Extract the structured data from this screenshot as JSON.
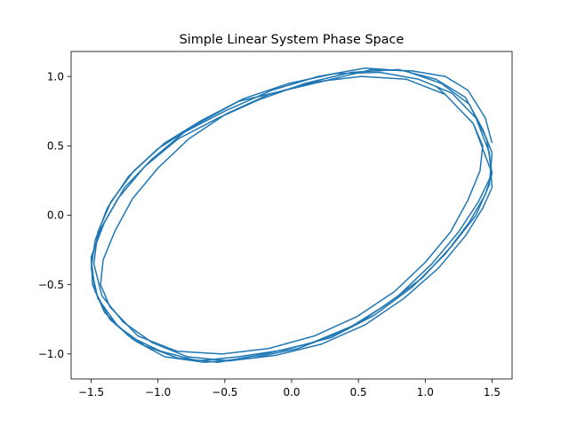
{
  "chart_data": {
    "type": "line",
    "title": "Simple Linear System Phase Space",
    "xlabel": "",
    "ylabel": "",
    "xlim": [
      -1.65,
      1.65
    ],
    "ylim": [
      -1.18,
      1.18
    ],
    "xticks": [
      -1.5,
      -1.0,
      -0.5,
      0.0,
      0.5,
      1.0,
      1.5
    ],
    "xtick_labels": [
      "−1.5",
      "−1.0",
      "−0.5",
      "0.0",
      "0.5",
      "1.0",
      "1.5"
    ],
    "yticks": [
      -1.0,
      -0.5,
      0.0,
      0.5,
      1.0
    ],
    "ytick_labels": [
      "−1.0",
      "−0.5",
      "0.0",
      "0.5",
      "1.0"
    ],
    "grid": false,
    "line_color": "#1f77b4",
    "series": [
      {
        "x": [
          1.5,
          1.43,
          1.3,
          1.08,
          0.8,
          0.45,
          0.1,
          -0.25,
          -0.55,
          -0.85,
          -1.1,
          -1.3,
          -1.43,
          -1.5,
          -1.47,
          -1.36,
          -1.18,
          -0.95,
          -0.65,
          -0.3,
          0.05,
          0.4,
          0.7,
          0.98,
          1.2,
          1.38,
          1.48,
          1.5
        ],
        "y": [
          0.45,
          0.62,
          0.85,
          0.98,
          1.05,
          1.03,
          0.95,
          0.83,
          0.7,
          0.55,
          0.35,
          0.12,
          -0.1,
          -0.32,
          -0.55,
          -0.75,
          -0.9,
          -1.02,
          -1.06,
          -1.03,
          -0.96,
          -0.83,
          -0.65,
          -0.45,
          -0.22,
          0.0,
          0.22,
          0.45
        ]
      },
      {
        "x": [
          1.5,
          1.46,
          1.33,
          1.12,
          0.85,
          0.55,
          0.2,
          -0.15,
          -0.5,
          -0.8,
          -1.05,
          -1.25,
          -1.4,
          -1.5,
          -1.49,
          -1.4,
          -1.22,
          -0.98,
          -0.7,
          -0.4,
          -0.05,
          0.3,
          0.62,
          0.9,
          1.15,
          1.33,
          1.45,
          1.5
        ],
        "y": [
          0.3,
          0.55,
          0.8,
          0.95,
          1.04,
          1.06,
          1.0,
          0.9,
          0.75,
          0.6,
          0.4,
          0.2,
          -0.05,
          -0.3,
          -0.5,
          -0.7,
          -0.87,
          -0.98,
          -1.05,
          -1.02,
          -0.97,
          -0.88,
          -0.72,
          -0.52,
          -0.28,
          -0.05,
          0.15,
          0.3
        ]
      },
      {
        "x": [
          1.5,
          1.45,
          1.32,
          1.15,
          0.9,
          0.6,
          0.3,
          -0.05,
          -0.4,
          -0.72,
          -1.0,
          -1.22,
          -1.38,
          -1.47,
          -1.5,
          -1.45,
          -1.3,
          -1.1,
          -0.85,
          -0.55,
          -0.2,
          0.15,
          0.5,
          0.8,
          1.05,
          1.25,
          1.4,
          1.5
        ],
        "y": [
          0.52,
          0.7,
          0.9,
          1.0,
          1.04,
          1.05,
          0.98,
          0.9,
          0.82,
          0.65,
          0.48,
          0.28,
          0.05,
          -0.18,
          -0.38,
          -0.6,
          -0.8,
          -0.94,
          -1.03,
          -1.06,
          -1.0,
          -0.92,
          -0.78,
          -0.58,
          -0.35,
          -0.12,
          0.1,
          0.3
        ]
      },
      {
        "x": [
          1.5,
          1.48,
          1.38,
          1.2,
          0.95,
          0.66,
          0.32,
          -0.02,
          -0.36,
          -0.68,
          -0.95,
          -1.18,
          -1.35,
          -1.45,
          -1.48,
          -1.42,
          -1.26,
          -1.04,
          -0.78,
          -0.47,
          -0.12,
          0.22,
          0.55,
          0.84,
          1.1,
          1.3,
          1.43,
          1.5
        ],
        "y": [
          0.2,
          0.45,
          0.7,
          0.88,
          0.98,
          1.03,
          1.02,
          0.95,
          0.84,
          0.68,
          0.52,
          0.32,
          0.1,
          -0.12,
          -0.35,
          -0.58,
          -0.77,
          -0.92,
          -1.02,
          -1.05,
          -1.01,
          -0.93,
          -0.79,
          -0.6,
          -0.38,
          -0.15,
          0.05,
          0.2
        ]
      },
      {
        "x": [
          1.5,
          1.36,
          1.15,
          0.86,
          0.52,
          0.17,
          -0.17,
          -0.49,
          -0.77,
          -1.0,
          -1.19,
          -1.32,
          -1.41,
          -1.43,
          -1.36,
          -1.15,
          -0.86,
          -0.52,
          -0.17,
          0.17,
          0.49,
          0.77,
          1.0,
          1.19,
          1.32,
          1.41,
          1.43,
          1.36,
          1.15,
          1.08
        ],
        "y": [
          0.3,
          0.66,
          0.87,
          0.98,
          1.0,
          0.96,
          0.87,
          0.73,
          0.55,
          0.34,
          0.12,
          -0.11,
          -0.32,
          -0.5,
          -0.66,
          -0.87,
          -0.98,
          -1.0,
          -0.96,
          -0.87,
          -0.73,
          -0.55,
          -0.34,
          -0.12,
          0.11,
          0.32,
          0.5,
          0.66,
          0.87,
          0.93
        ]
      }
    ]
  }
}
